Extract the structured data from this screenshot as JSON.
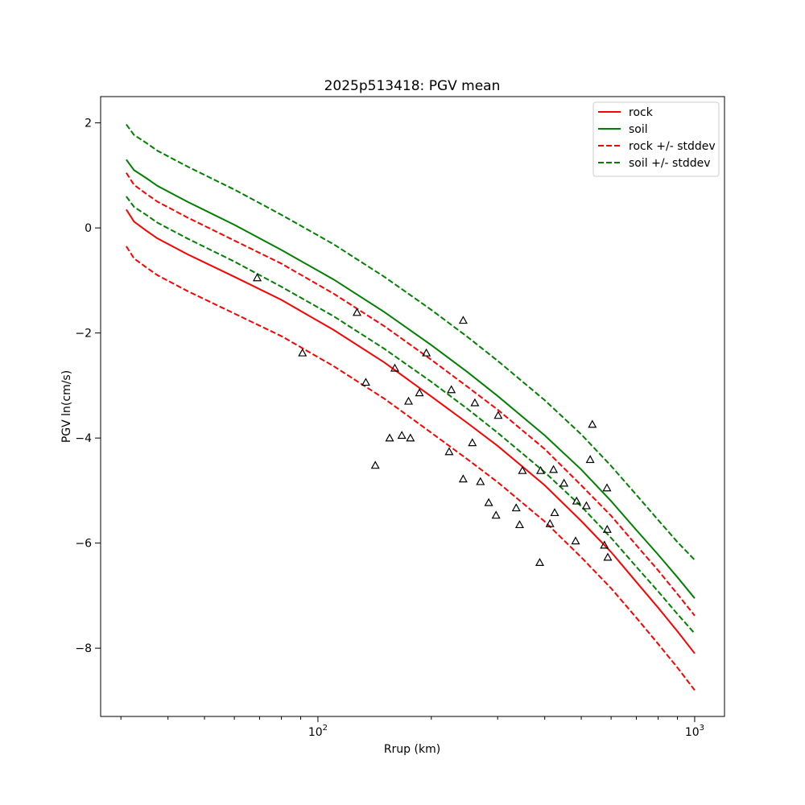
{
  "chart_data": {
    "type": "line",
    "title": "2025p513418: PGV mean",
    "xlabel": "Rrup (km)",
    "ylabel": "PGV ln(cm/s)",
    "xscale": "log",
    "xlim": [
      26.5,
      1200
    ],
    "ylim": [
      -9.3,
      2.5
    ],
    "grid": false,
    "legend_position": "top-right",
    "x_ticks": [
      {
        "value": 100,
        "label": "10^2"
      },
      {
        "value": 1000,
        "label": "10^3"
      }
    ],
    "y_ticks": [
      {
        "value": 2,
        "label": "2"
      },
      {
        "value": 0,
        "label": "0"
      },
      {
        "value": -2,
        "label": "−2"
      },
      {
        "value": -4,
        "label": "−4"
      },
      {
        "value": -6,
        "label": "−6"
      },
      {
        "value": -8,
        "label": "−8"
      }
    ],
    "x": [
      31,
      32.5,
      35,
      37.5,
      45,
      60,
      80,
      110,
      150,
      200,
      250,
      300,
      400,
      500,
      600,
      700,
      800,
      900,
      1000
    ],
    "series": [
      {
        "name": "rock",
        "color": "#ff0000",
        "dash": false,
        "values": [
          0.35,
          0.12,
          -0.05,
          -0.2,
          -0.5,
          -0.93,
          -1.37,
          -1.94,
          -2.56,
          -3.21,
          -3.72,
          -4.15,
          -4.9,
          -5.58,
          -6.17,
          -6.74,
          -7.23,
          -7.68,
          -8.1
        ]
      },
      {
        "name": "soil",
        "color": "#008000",
        "dash": false,
        "values": [
          1.3,
          1.1,
          0.95,
          0.8,
          0.5,
          0.06,
          -0.42,
          -0.98,
          -1.6,
          -2.23,
          -2.75,
          -3.2,
          -3.95,
          -4.6,
          -5.2,
          -5.75,
          -6.22,
          -6.65,
          -7.05
        ]
      },
      {
        "name": "rock +/- stddev",
        "color": "#ff0000",
        "dash": true,
        "values": [
          1.05,
          0.82,
          0.65,
          0.5,
          0.2,
          -0.24,
          -0.68,
          -1.25,
          -1.87,
          -2.51,
          -3.03,
          -3.46,
          -4.21,
          -4.9,
          -5.48,
          -6.04,
          -6.52,
          -6.97,
          -7.38
        ]
      },
      {
        "name": "rock +/- stddev",
        "color": "#ff0000",
        "dash": true,
        "legend": false,
        "values": [
          -0.35,
          -0.58,
          -0.75,
          -0.9,
          -1.2,
          -1.63,
          -2.06,
          -2.63,
          -3.25,
          -3.9,
          -4.41,
          -4.84,
          -5.59,
          -6.27,
          -6.86,
          -7.42,
          -7.92,
          -8.37,
          -8.8
        ]
      },
      {
        "name": "soil +/- stddev",
        "color": "#008000",
        "dash": true,
        "values": [
          1.97,
          1.77,
          1.62,
          1.47,
          1.17,
          0.73,
          0.25,
          -0.31,
          -0.93,
          -1.56,
          -2.08,
          -2.53,
          -3.28,
          -3.93,
          -4.53,
          -5.08,
          -5.56,
          -5.98,
          -6.32
        ]
      },
      {
        "name": "soil +/- stddev",
        "color": "#008000",
        "dash": true,
        "legend": false,
        "values": [
          0.6,
          0.4,
          0.25,
          0.1,
          -0.2,
          -0.64,
          -1.12,
          -1.68,
          -2.3,
          -2.93,
          -3.45,
          -3.9,
          -4.65,
          -5.3,
          -5.9,
          -6.45,
          -6.92,
          -7.35,
          -7.72
        ]
      }
    ],
    "observations": {
      "marker": "open-triangle",
      "color": "#000000",
      "points": [
        {
          "x": 69,
          "y": -0.95
        },
        {
          "x": 91,
          "y": -2.38
        },
        {
          "x": 127,
          "y": -1.61
        },
        {
          "x": 134,
          "y": -2.94
        },
        {
          "x": 142,
          "y": -4.52
        },
        {
          "x": 155,
          "y": -4.0
        },
        {
          "x": 160,
          "y": -2.67
        },
        {
          "x": 167,
          "y": -3.95
        },
        {
          "x": 174,
          "y": -3.3
        },
        {
          "x": 176,
          "y": -4.0
        },
        {
          "x": 186,
          "y": -3.14
        },
        {
          "x": 194,
          "y": -2.38
        },
        {
          "x": 223,
          "y": -4.26
        },
        {
          "x": 226,
          "y": -3.08
        },
        {
          "x": 243,
          "y": -1.76
        },
        {
          "x": 243,
          "y": -4.78
        },
        {
          "x": 257,
          "y": -4.09
        },
        {
          "x": 261,
          "y": -3.33
        },
        {
          "x": 270,
          "y": -4.83
        },
        {
          "x": 284,
          "y": -5.23
        },
        {
          "x": 297,
          "y": -5.47
        },
        {
          "x": 301,
          "y": -3.57
        },
        {
          "x": 336,
          "y": -5.33
        },
        {
          "x": 343,
          "y": -5.65
        },
        {
          "x": 349,
          "y": -4.62
        },
        {
          "x": 388,
          "y": -6.37
        },
        {
          "x": 390,
          "y": -4.62
        },
        {
          "x": 413,
          "y": -5.63
        },
        {
          "x": 422,
          "y": -4.6
        },
        {
          "x": 425,
          "y": -5.42
        },
        {
          "x": 450,
          "y": -4.86
        },
        {
          "x": 483,
          "y": -5.96
        },
        {
          "x": 486,
          "y": -5.2
        },
        {
          "x": 516,
          "y": -5.29
        },
        {
          "x": 528,
          "y": -4.41
        },
        {
          "x": 535,
          "y": -3.74
        },
        {
          "x": 576,
          "y": -6.04
        },
        {
          "x": 585,
          "y": -4.95
        },
        {
          "x": 586,
          "y": -5.74
        },
        {
          "x": 588,
          "y": -6.27
        }
      ]
    }
  }
}
